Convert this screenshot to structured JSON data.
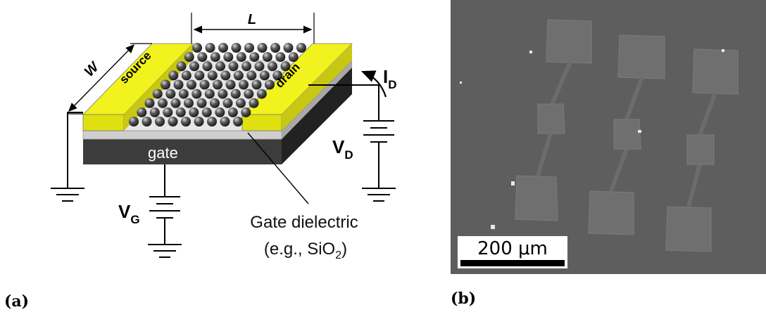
{
  "panel_a": {
    "label": "(a)",
    "length_label": "L",
    "width_label": "W",
    "source_label": "source",
    "drain_label": "drain",
    "gate_label": "gate",
    "current_label": "I",
    "current_sub": "D",
    "drain_voltage_label": "V",
    "drain_voltage_sub": "D",
    "gate_voltage_label": "V",
    "gate_voltage_sub": "G",
    "dielectric_line1": "Gate dielectric",
    "dielectric_line2_prefix": "(e.g., SiO",
    "dielectric_line2_sub": "2",
    "dielectric_line2_suffix": ")",
    "colors": {
      "electrode": "#f0f020",
      "gate": "#3c3c3c",
      "dielectric": "#c8c8c8",
      "particle": "#4a4a4a"
    }
  },
  "panel_b": {
    "label": "(b)",
    "scale_bar_text": "200 μm",
    "background_color": "#5e5e5e"
  }
}
